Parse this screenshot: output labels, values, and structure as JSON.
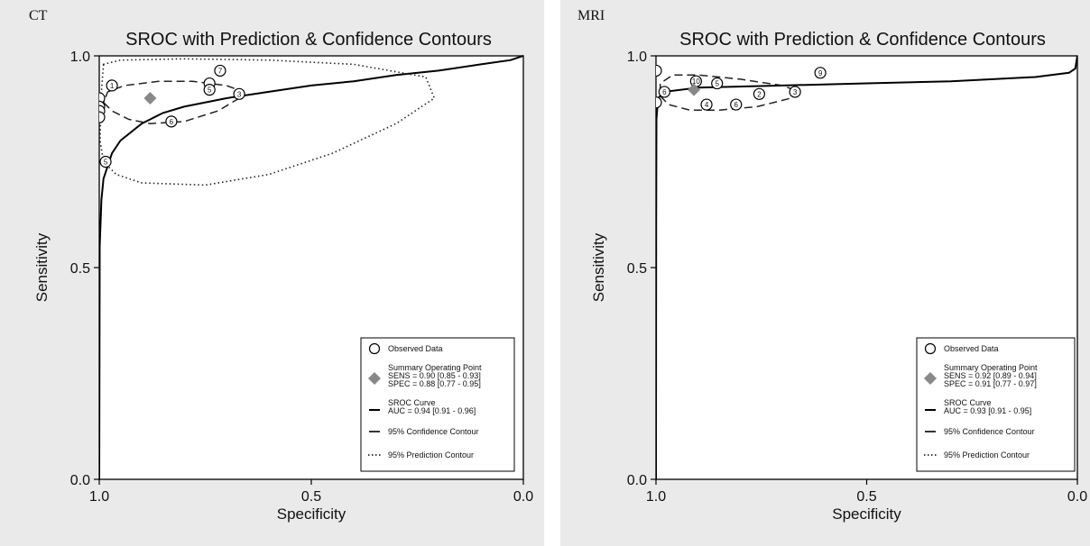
{
  "chart_data": [
    {
      "type": "scatter",
      "panel_label": "CT",
      "title": "SROC with Prediction & Confidence Contours",
      "xlabel": "Specificity",
      "ylabel": "Sensitivity",
      "xlim": [
        1.0,
        0.0
      ],
      "ylim": [
        0.0,
        1.0
      ],
      "x_ticks": [
        "1.0",
        "0.5",
        "0.0"
      ],
      "y_ticks": [
        "0.0",
        "0.5",
        "1.0"
      ],
      "grid": false,
      "legend_placement": "bottom-right",
      "series": [
        {
          "kind": "observed",
          "points": [
            {
              "label": "1",
              "spec": 0.97,
              "sens": 0.93
            },
            {
              "label": "",
              "spec": 1.0,
              "sens": 0.9
            },
            {
              "label": "",
              "spec": 1.0,
              "sens": 0.88
            },
            {
              "label": "",
              "spec": 1.0,
              "sens": 0.87
            },
            {
              "label": "",
              "spec": 1.0,
              "sens": 0.855
            },
            {
              "label": "5",
              "spec": 0.985,
              "sens": 0.75
            },
            {
              "label": "6",
              "spec": 0.83,
              "sens": 0.845
            },
            {
              "label": "3",
              "spec": 0.67,
              "sens": 0.91
            },
            {
              "label": "",
              "spec": 0.74,
              "sens": 0.935
            },
            {
              "label": "5",
              "spec": 0.74,
              "sens": 0.92
            },
            {
              "label": "7",
              "spec": 0.715,
              "sens": 0.965
            }
          ]
        },
        {
          "kind": "summary",
          "point": {
            "spec": 0.88,
            "sens": 0.9
          }
        },
        {
          "kind": "sroc",
          "points": [
            [
              1.0,
              0.0
            ],
            [
              0.999,
              0.55
            ],
            [
              0.995,
              0.66
            ],
            [
              0.99,
              0.71
            ],
            [
              0.97,
              0.77
            ],
            [
              0.95,
              0.8
            ],
            [
              0.9,
              0.84
            ],
            [
              0.85,
              0.865
            ],
            [
              0.8,
              0.88
            ],
            [
              0.7,
              0.9
            ],
            [
              0.6,
              0.915
            ],
            [
              0.5,
              0.93
            ],
            [
              0.4,
              0.94
            ],
            [
              0.3,
              0.955
            ],
            [
              0.2,
              0.965
            ],
            [
              0.1,
              0.98
            ],
            [
              0.03,
              0.99
            ],
            [
              0.0,
              1.0
            ]
          ]
        },
        {
          "kind": "confidence",
          "points": [
            [
              0.99,
              0.89
            ],
            [
              0.97,
              0.87
            ],
            [
              0.93,
              0.85
            ],
            [
              0.88,
              0.84
            ],
            [
              0.8,
              0.845
            ],
            [
              0.72,
              0.87
            ],
            [
              0.67,
              0.9
            ],
            [
              0.66,
              0.915
            ],
            [
              0.7,
              0.93
            ],
            [
              0.78,
              0.94
            ],
            [
              0.86,
              0.94
            ],
            [
              0.94,
              0.93
            ],
            [
              0.98,
              0.915
            ]
          ]
        },
        {
          "kind": "prediction",
          "points": [
            [
              0.99,
              0.98
            ],
            [
              0.996,
              0.9
            ],
            [
              0.998,
              0.8
            ],
            [
              0.99,
              0.75
            ],
            [
              0.96,
              0.72
            ],
            [
              0.9,
              0.7
            ],
            [
              0.75,
              0.695
            ],
            [
              0.6,
              0.72
            ],
            [
              0.45,
              0.77
            ],
            [
              0.3,
              0.84
            ],
            [
              0.21,
              0.9
            ],
            [
              0.23,
              0.95
            ],
            [
              0.4,
              0.98
            ],
            [
              0.6,
              0.99
            ],
            [
              0.8,
              0.993
            ],
            [
              0.95,
              0.99
            ]
          ]
        }
      ],
      "legend": {
        "observed": "Observed Data",
        "summary_title": "Summary Operating Point",
        "sens": "SENS = 0.90 [0.85 - 0.93]",
        "spec": "SPEC = 0.88 [0.77 - 0.95]",
        "curve_title": "SROC Curve",
        "auc": "AUC = 0.94 [0.91 - 0.96]",
        "confidence": "95% Confidence Contour",
        "prediction": "95% Prediction Contour"
      }
    },
    {
      "type": "scatter",
      "panel_label": "MRI",
      "title": "SROC with Prediction & Confidence Contours",
      "xlabel": "Specificity",
      "ylabel": "Sensitivity",
      "xlim": [
        1.0,
        0.0
      ],
      "ylim": [
        0.0,
        1.0
      ],
      "x_ticks": [
        "1.0",
        "0.5",
        "0.0"
      ],
      "y_ticks": [
        "0.0",
        "0.5",
        "1.0"
      ],
      "grid": false,
      "legend_placement": "bottom-right",
      "series": [
        {
          "kind": "observed",
          "points": [
            {
              "label": "",
              "spec": 1.0,
              "sens": 0.965
            },
            {
              "label": "",
              "spec": 1.0,
              "sens": 0.89
            },
            {
              "label": "6",
              "spec": 0.98,
              "sens": 0.915
            },
            {
              "label": "10",
              "spec": 0.905,
              "sens": 0.94
            },
            {
              "label": "5",
              "spec": 0.855,
              "sens": 0.935
            },
            {
              "label": "4",
              "spec": 0.88,
              "sens": 0.885
            },
            {
              "label": "6",
              "spec": 0.81,
              "sens": 0.885
            },
            {
              "label": "2",
              "spec": 0.755,
              "sens": 0.91
            },
            {
              "label": "3",
              "spec": 0.67,
              "sens": 0.915
            },
            {
              "label": "9",
              "spec": 0.61,
              "sens": 0.96
            }
          ]
        },
        {
          "kind": "summary",
          "point": {
            "spec": 0.91,
            "sens": 0.92
          }
        },
        {
          "kind": "sroc",
          "points": [
            [
              1.0,
              0.0
            ],
            [
              0.9995,
              0.6
            ],
            [
              0.999,
              0.85
            ],
            [
              0.995,
              0.9
            ],
            [
              0.98,
              0.915
            ],
            [
              0.9,
              0.925
            ],
            [
              0.7,
              0.93
            ],
            [
              0.5,
              0.935
            ],
            [
              0.3,
              0.94
            ],
            [
              0.1,
              0.95
            ],
            [
              0.02,
              0.96
            ],
            [
              0.005,
              0.97
            ],
            [
              0.0,
              1.0
            ]
          ]
        },
        {
          "kind": "confidence",
          "points": [
            [
              0.99,
              0.905
            ],
            [
              0.97,
              0.885
            ],
            [
              0.92,
              0.872
            ],
            [
              0.85,
              0.872
            ],
            [
              0.76,
              0.88
            ],
            [
              0.68,
              0.9
            ],
            [
              0.66,
              0.915
            ],
            [
              0.7,
              0.93
            ],
            [
              0.8,
              0.945
            ],
            [
              0.9,
              0.955
            ],
            [
              0.96,
              0.955
            ],
            [
              0.99,
              0.935
            ]
          ]
        },
        {
          "kind": "prediction",
          "points": []
        }
      ],
      "legend": {
        "observed": "Observed Data",
        "summary_title": "Summary Operating Point",
        "sens": "SENS = 0.92 [0.89 - 0.94]",
        "spec": "SPEC = 0.91 [0.77 - 0.97]",
        "curve_title": "SROC Curve",
        "auc": "AUC = 0.93 [0.91 - 0.95]",
        "confidence": "95% Confidence Contour",
        "prediction": "95% Prediction Contour"
      }
    }
  ]
}
